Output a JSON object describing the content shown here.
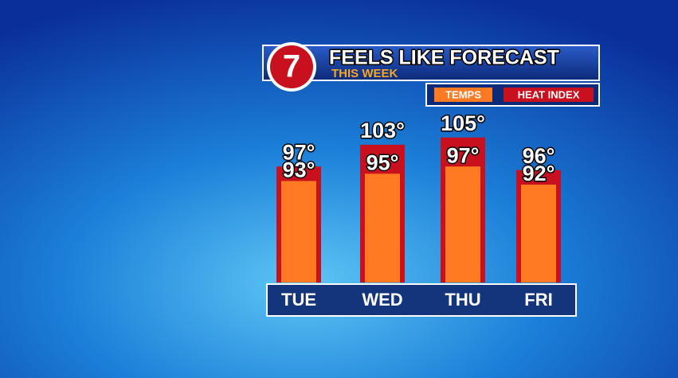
{
  "chart_data": {
    "type": "bar",
    "logo": "7",
    "title": "FEELS LIKE FORECAST",
    "subtitle": "THIS WEEK",
    "categories": [
      "TUE",
      "WED",
      "THU",
      "FRI"
    ],
    "series": [
      {
        "name": "TEMPS",
        "color": "#ff7a22",
        "values": [
          93,
          95,
          97,
          92
        ],
        "value_labels": [
          "93°",
          "95°",
          "97°",
          "92°"
        ]
      },
      {
        "name": "HEAT INDEX",
        "color": "#c8101e",
        "values": [
          97,
          103,
          105,
          96
        ],
        "value_labels": [
          "97°",
          "103°",
          "105°",
          "96°"
        ]
      }
    ],
    "ylim": [
      65,
      110
    ]
  }
}
